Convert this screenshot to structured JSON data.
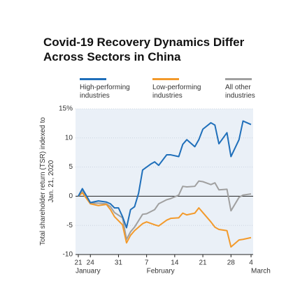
{
  "chart_data": {
    "type": "line",
    "title": "Covid-19 Recovery Dynamics Differ Across Sectors in China",
    "ylabel": "Total shareholder return (TSR) indexed to Jan. 21, 2020",
    "xlim": [
      0,
      43
    ],
    "xticks": [
      {
        "value": 0,
        "label": "21"
      },
      {
        "value": 3,
        "label": "24"
      },
      {
        "value": 10,
        "label": "31"
      },
      {
        "value": 17,
        "label": "7"
      },
      {
        "value": 24,
        "label": "14"
      },
      {
        "value": 31,
        "label": "21"
      },
      {
        "value": 38,
        "label": "28"
      },
      {
        "value": 43,
        "label": "4"
      }
    ],
    "months": [
      "January",
      "February",
      "March"
    ],
    "ylim": [
      -10,
      15
    ],
    "yticks": [
      {
        "value": 15,
        "label": "15%"
      },
      10,
      5,
      0,
      -5,
      -10
    ],
    "grid": true,
    "series": [
      {
        "name": "High-performing industries",
        "color": "#1f6fba",
        "x": [
          0,
          1,
          3,
          5,
          7,
          8,
          9,
          10,
          11,
          12,
          13,
          14,
          15,
          16,
          18,
          19,
          20,
          22,
          23,
          25,
          26,
          27,
          29,
          30,
          31,
          33,
          34,
          35,
          37,
          38,
          40,
          41,
          43
        ],
        "values": [
          0,
          1.3,
          -1.1,
          -0.8,
          -1,
          -1.3,
          -2,
          -2,
          -3.5,
          -5.4,
          -2.3,
          -1.8,
          0.5,
          4.5,
          5.5,
          5.9,
          5.3,
          7.1,
          7.1,
          6.8,
          8.9,
          9.7,
          8.5,
          9.7,
          11.5,
          12.6,
          12.2,
          9,
          10.9,
          6.8,
          9.7,
          12.9,
          12.3
        ]
      },
      {
        "name": "Low-performing industries",
        "color": "#f39a2b",
        "x": [
          0,
          1,
          3,
          5,
          7,
          8,
          9,
          11,
          12,
          13,
          14,
          16,
          17,
          19,
          20,
          22,
          23,
          25,
          26,
          27,
          29,
          30,
          31,
          33,
          34,
          35,
          37,
          38,
          40,
          41,
          43
        ],
        "values": [
          0,
          0.6,
          -1.3,
          -1.6,
          -1.4,
          -2.3,
          -3.5,
          -4.9,
          -8,
          -6.7,
          -5.9,
          -4.7,
          -4.4,
          -4.9,
          -5.1,
          -4.1,
          -3.8,
          -3.7,
          -2.9,
          -3.2,
          -2.9,
          -2,
          -2.8,
          -4.4,
          -5.3,
          -5.7,
          -5.9,
          -8.7,
          -7.5,
          -7.4,
          -7.1
        ]
      },
      {
        "name": "All other industries",
        "color": "#a0a0a0",
        "x": [
          0,
          1,
          3,
          5,
          7,
          8,
          9,
          11,
          12,
          13,
          14,
          16,
          17,
          19,
          20,
          22,
          23,
          25,
          26,
          27,
          29,
          30,
          31,
          33,
          34,
          35,
          37,
          38,
          40,
          41,
          43
        ],
        "values": [
          0,
          1,
          -1.2,
          -1.2,
          -1.3,
          -1.8,
          -2.8,
          -3.7,
          -7.4,
          -6.1,
          -5.3,
          -3.1,
          -3,
          -2.3,
          -1.3,
          -0.6,
          -0.4,
          0.2,
          1.7,
          1.6,
          1.7,
          2.6,
          2.5,
          2,
          2.3,
          1.1,
          1.2,
          -2.5,
          -0.2,
          0.2,
          0.4
        ]
      }
    ]
  }
}
